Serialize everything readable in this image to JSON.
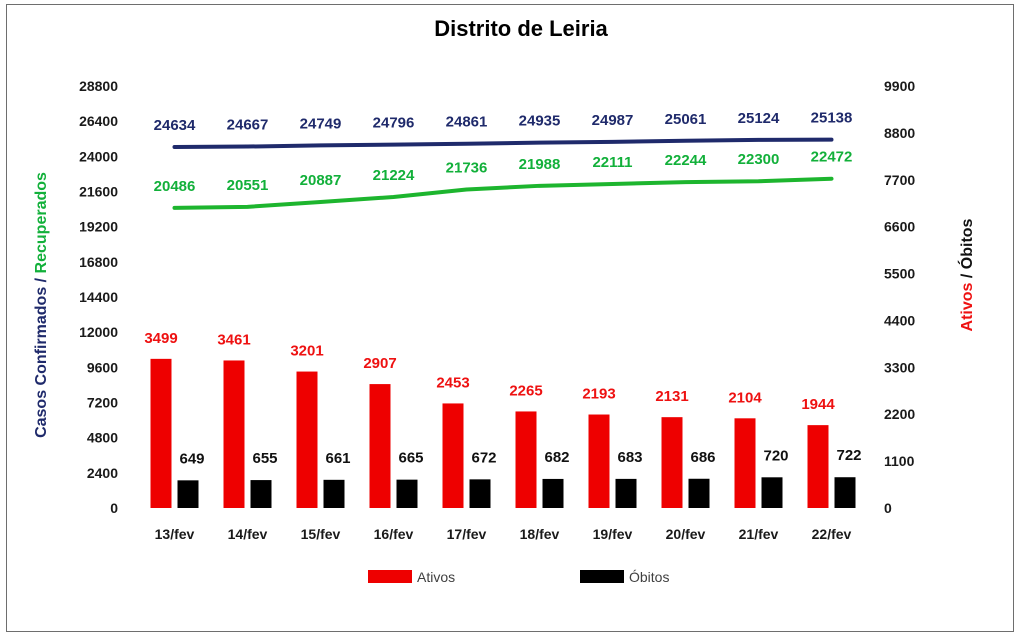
{
  "chart_data": {
    "type": "bar+line",
    "title": "Distrito de Leiria",
    "categories": [
      "13/fev",
      "14/fev",
      "15/fev",
      "16/fev",
      "17/fev",
      "18/fev",
      "19/fev",
      "20/fev",
      "21/fev",
      "22/fev"
    ],
    "ylabel_left_parts": [
      "Casos Confirmados",
      " / ",
      "Recuperados"
    ],
    "ylabel_right_parts": [
      "Ativos",
      " / ",
      "Óbitos"
    ],
    "y_left": {
      "min": 0,
      "max": 28800,
      "ticks": [
        "0",
        "2400",
        "4800",
        "7200",
        "9600",
        "12000",
        "14400",
        "16800",
        "19200",
        "21600",
        "24000",
        "26400",
        "28800"
      ]
    },
    "y_right": {
      "min": 0,
      "max": 9900,
      "ticks": [
        "0",
        "1100",
        "2200",
        "3300",
        "4400",
        "5500",
        "6600",
        "7700",
        "8800",
        "9900"
      ]
    },
    "lines": [
      {
        "name": "Casos Confirmados",
        "axis": "left",
        "color": "#1f2a6b",
        "label_color": "#1f2a6b",
        "values": [
          24634,
          24667,
          24749,
          24796,
          24861,
          24935,
          24987,
          25061,
          25124,
          25138
        ],
        "labels": [
          "24634",
          "24667",
          "24749",
          "24796",
          "24861",
          "24935",
          "24987",
          "25061",
          "25124",
          "25138"
        ]
      },
      {
        "name": "Recuperados",
        "axis": "left",
        "color": "#1db52e",
        "label_color": "#12b03a",
        "values": [
          20486,
          20551,
          20887,
          21224,
          21736,
          21988,
          22111,
          22244,
          22300,
          22472
        ],
        "labels": [
          "20486",
          "20551",
          "20887",
          "21224",
          "21736",
          "21988",
          "22111",
          "22244",
          "22300",
          "22472"
        ]
      }
    ],
    "bars": [
      {
        "name": "Ativos",
        "axis": "right",
        "color": "#ee0000",
        "label_color": "#ee1111",
        "values": [
          3499,
          3461,
          3201,
          2907,
          2453,
          2265,
          2193,
          2131,
          2104,
          1944
        ],
        "labels": [
          "3499",
          "3461",
          "3201",
          "2907",
          "2453",
          "2265",
          "2193",
          "2131",
          "2104",
          "1944"
        ]
      },
      {
        "name": "Óbitos",
        "axis": "right",
        "color": "#000000",
        "label_color": "#111111",
        "values": [
          649,
          655,
          661,
          665,
          672,
          682,
          683,
          686,
          720,
          722
        ],
        "labels": [
          "649",
          "655",
          "661",
          "665",
          "672",
          "682",
          "683",
          "686",
          "720",
          "722"
        ]
      }
    ],
    "legend": {
      "position": "bottom",
      "items": [
        {
          "label": "Ativos",
          "color": "#ee0000"
        },
        {
          "label": "Óbitos",
          "color": "#000000"
        }
      ]
    },
    "colors": {
      "left_axis_title": "#1f2a6b",
      "recuperados_title": "#12b03a",
      "ativos_title": "#ee1111",
      "obitos_title": "#111111"
    },
    "grid": false
  }
}
